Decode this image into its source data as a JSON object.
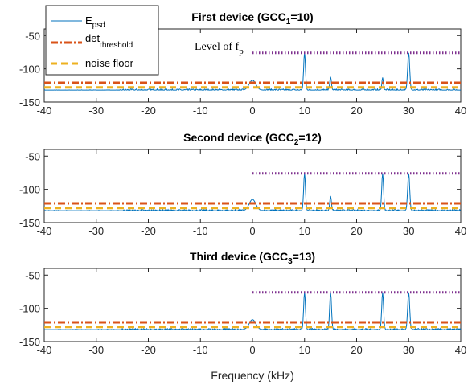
{
  "colors": {
    "epsd": "#0072bd",
    "threshold": "#d95319",
    "noise": "#edb120",
    "fp_level": "#7e2f8e"
  },
  "legend": {
    "items": [
      {
        "key": "epsd",
        "main": "E",
        "sub": "psd"
      },
      {
        "key": "threshold",
        "main": "det",
        "sub": "threshold"
      },
      {
        "key": "noise",
        "main": "noise floor",
        "sub": ""
      }
    ]
  },
  "annotation": {
    "main": "Level of f",
    "sub": "p"
  },
  "xlabel": "Frequency (kHz)",
  "chart_data": [
    {
      "type": "line",
      "title": {
        "prefix": "First device (GCC",
        "sub": "1",
        "suffix": "=10)"
      },
      "xlim": [
        -40,
        40
      ],
      "ylim": [
        -150,
        -40
      ],
      "xticks": [
        -40,
        -30,
        -20,
        -10,
        0,
        10,
        20,
        30,
        40
      ],
      "yticks": [
        -50,
        -100,
        -150
      ],
      "series": [
        {
          "name": "E_psd",
          "style": "solid",
          "baseline": -132,
          "peaks": [
            [
              0,
              -117,
              0.9
            ],
            [
              10,
              -76,
              0.25
            ],
            [
              15,
              -112,
              0.22
            ],
            [
              25,
              -113,
              0.2
            ],
            [
              30,
              -76,
              0.28
            ]
          ]
        },
        {
          "name": "det_threshold",
          "style": "dashdot",
          "x": [
            -40,
            40
          ],
          "y": [
            -121,
            -121
          ]
        },
        {
          "name": "noise floor",
          "style": "dashed",
          "x": [
            -40,
            40
          ],
          "y": [
            -128,
            -128
          ]
        },
        {
          "name": "Level of f_p",
          "style": "dotted",
          "x": [
            0,
            40
          ],
          "y": [
            -76,
            -76
          ]
        }
      ]
    },
    {
      "type": "line",
      "title": {
        "prefix": "Second device (GCC",
        "sub": "2",
        "suffix": "=12)"
      },
      "xlim": [
        -40,
        40
      ],
      "ylim": [
        -150,
        -40
      ],
      "xticks": [
        -40,
        -30,
        -20,
        -10,
        0,
        10,
        20,
        30,
        40
      ],
      "yticks": [
        -50,
        -100,
        -150
      ],
      "series": [
        {
          "name": "E_psd",
          "style": "solid",
          "baseline": -132,
          "peaks": [
            [
              0,
              -115,
              0.9
            ],
            [
              10,
              -76,
              0.25
            ],
            [
              15,
              -110,
              0.22
            ],
            [
              25,
              -76,
              0.25
            ],
            [
              30,
              -76,
              0.28
            ]
          ]
        },
        {
          "name": "det_threshold",
          "style": "dashdot",
          "x": [
            -40,
            40
          ],
          "y": [
            -121,
            -121
          ]
        },
        {
          "name": "noise floor",
          "style": "dashed",
          "x": [
            -40,
            40
          ],
          "y": [
            -128,
            -128
          ]
        },
        {
          "name": "Level of f_p",
          "style": "dotted",
          "x": [
            0,
            40
          ],
          "y": [
            -76,
            -76
          ]
        }
      ]
    },
    {
      "type": "line",
      "title": {
        "prefix": "Third device (GCC",
        "sub": "3",
        "suffix": "=13)"
      },
      "xlim": [
        -40,
        40
      ],
      "ylim": [
        -150,
        -40
      ],
      "xticks": [
        -40,
        -30,
        -20,
        -10,
        0,
        10,
        20,
        30,
        40
      ],
      "yticks": [
        -50,
        -100,
        -150
      ],
      "series": [
        {
          "name": "E_psd",
          "style": "solid",
          "baseline": -132,
          "peaks": [
            [
              0,
              -117,
              0.9
            ],
            [
              10,
              -76,
              0.25
            ],
            [
              15,
              -76,
              0.25
            ],
            [
              25,
              -76,
              0.25
            ],
            [
              30,
              -76,
              0.28
            ]
          ]
        },
        {
          "name": "det_threshold",
          "style": "dashdot",
          "x": [
            -40,
            40
          ],
          "y": [
            -121,
            -121
          ]
        },
        {
          "name": "noise floor",
          "style": "dashed",
          "x": [
            -40,
            40
          ],
          "y": [
            -128,
            -128
          ]
        },
        {
          "name": "Level of f_p",
          "style": "dotted",
          "x": [
            0,
            40
          ],
          "y": [
            -76,
            -76
          ]
        }
      ]
    }
  ]
}
